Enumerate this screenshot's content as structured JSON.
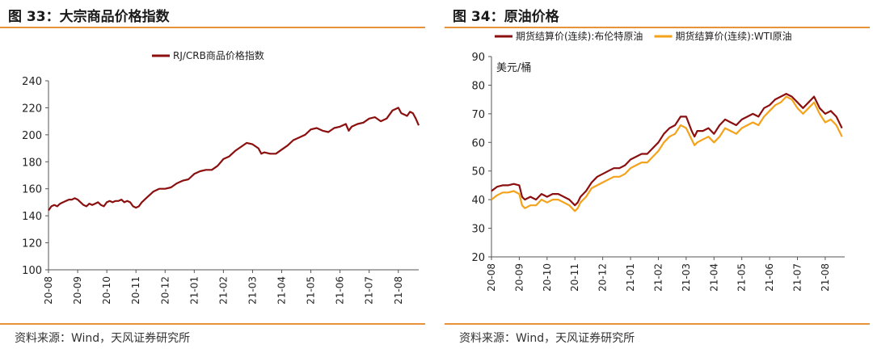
{
  "left": {
    "figure_title": "图 33：大宗商品价格指数",
    "source": "资料来源：Wind，天风证券研究所"
  },
  "right": {
    "figure_title": "图 34：原油价格",
    "source": "资料来源：Wind，天风证券研究所"
  },
  "colors": {
    "dark_red": "#8b0f0f",
    "orange": "#f5a21b",
    "rule": "#e8923a"
  },
  "chart_data": [
    {
      "type": "line",
      "title": "",
      "xlabel": "",
      "ylabel": "",
      "ylim": [
        100,
        240
      ],
      "y_ticks": [
        "100",
        "120",
        "140",
        "160",
        "180",
        "200",
        "220",
        "240"
      ],
      "x_ticks": [
        "20-08",
        "20-09",
        "20-10",
        "20-11",
        "20-12",
        "21-01",
        "21-02",
        "21-03",
        "21-04",
        "21-05",
        "21-06",
        "21-07",
        "21-08"
      ],
      "x_range": [
        0,
        12.7
      ],
      "legend_position": "top",
      "grid": false,
      "series": [
        {
          "name": "RJ/CRB商品价格指数",
          "color": "#8b0f0f",
          "points": [
            [
              0.0,
              144
            ],
            [
              0.1,
              147
            ],
            [
              0.2,
              148
            ],
            [
              0.3,
              147
            ],
            [
              0.4,
              149
            ],
            [
              0.5,
              150
            ],
            [
              0.6,
              151
            ],
            [
              0.7,
              152
            ],
            [
              0.8,
              152
            ],
            [
              0.9,
              153
            ],
            [
              1.0,
              152
            ],
            [
              1.1,
              150
            ],
            [
              1.2,
              148
            ],
            [
              1.3,
              147
            ],
            [
              1.4,
              149
            ],
            [
              1.5,
              148
            ],
            [
              1.6,
              149
            ],
            [
              1.7,
              150
            ],
            [
              1.8,
              148
            ],
            [
              1.9,
              147
            ],
            [
              2.0,
              150
            ],
            [
              2.1,
              151
            ],
            [
              2.2,
              150
            ],
            [
              2.3,
              151
            ],
            [
              2.4,
              151
            ],
            [
              2.5,
              152
            ],
            [
              2.6,
              150
            ],
            [
              2.7,
              151
            ],
            [
              2.8,
              150
            ],
            [
              2.9,
              147
            ],
            [
              3.0,
              146
            ],
            [
              3.1,
              147
            ],
            [
              3.2,
              150
            ],
            [
              3.3,
              152
            ],
            [
              3.4,
              154
            ],
            [
              3.5,
              156
            ],
            [
              3.6,
              158
            ],
            [
              3.8,
              160
            ],
            [
              4.0,
              160
            ],
            [
              4.2,
              161
            ],
            [
              4.4,
              164
            ],
            [
              4.6,
              166
            ],
            [
              4.8,
              167
            ],
            [
              5.0,
              171
            ],
            [
              5.2,
              173
            ],
            [
              5.4,
              174
            ],
            [
              5.6,
              174
            ],
            [
              5.8,
              177
            ],
            [
              6.0,
              182
            ],
            [
              6.2,
              184
            ],
            [
              6.4,
              188
            ],
            [
              6.6,
              191
            ],
            [
              6.8,
              194
            ],
            [
              7.0,
              193
            ],
            [
              7.2,
              190
            ],
            [
              7.3,
              186
            ],
            [
              7.4,
              187
            ],
            [
              7.6,
              186
            ],
            [
              7.8,
              186
            ],
            [
              8.0,
              189
            ],
            [
              8.2,
              192
            ],
            [
              8.4,
              196
            ],
            [
              8.6,
              198
            ],
            [
              8.8,
              200
            ],
            [
              9.0,
              204
            ],
            [
              9.2,
              205
            ],
            [
              9.4,
              203
            ],
            [
              9.6,
              202
            ],
            [
              9.8,
              205
            ],
            [
              10.0,
              206
            ],
            [
              10.2,
              208
            ],
            [
              10.3,
              203
            ],
            [
              10.4,
              206
            ],
            [
              10.6,
              208
            ],
            [
              10.8,
              209
            ],
            [
              11.0,
              212
            ],
            [
              11.2,
              213
            ],
            [
              11.4,
              210
            ],
            [
              11.6,
              212
            ],
            [
              11.8,
              218
            ],
            [
              12.0,
              220
            ],
            [
              12.1,
              216
            ],
            [
              12.2,
              215
            ],
            [
              12.3,
              214
            ],
            [
              12.4,
              217
            ],
            [
              12.5,
              216
            ],
            [
              12.6,
              212
            ],
            [
              12.7,
              207
            ]
          ]
        }
      ]
    },
    {
      "type": "line",
      "title": "",
      "xlabel": "",
      "ylabel": "美元/桶",
      "ylim": [
        20,
        90
      ],
      "y_ticks": [
        "20",
        "30",
        "40",
        "50",
        "60",
        "70",
        "80",
        "90"
      ],
      "x_ticks": [
        "20-08",
        "20-09",
        "20-10",
        "20-11",
        "20-12",
        "21-01",
        "21-02",
        "21-03",
        "21-04",
        "21-05",
        "21-06",
        "21-07",
        "21-08"
      ],
      "x_range": [
        0,
        12.7
      ],
      "legend_position": "top",
      "grid": false,
      "series": [
        {
          "name": "期货结算价(连续):布伦特原油",
          "color": "#8b0f0f",
          "points": [
            [
              0.0,
              43
            ],
            [
              0.2,
              44.5
            ],
            [
              0.4,
              45
            ],
            [
              0.6,
              45
            ],
            [
              0.8,
              45.5
            ],
            [
              1.0,
              45
            ],
            [
              1.1,
              41
            ],
            [
              1.2,
              40
            ],
            [
              1.4,
              41
            ],
            [
              1.6,
              40
            ],
            [
              1.8,
              42
            ],
            [
              2.0,
              41
            ],
            [
              2.2,
              42
            ],
            [
              2.4,
              42
            ],
            [
              2.6,
              41
            ],
            [
              2.8,
              40
            ],
            [
              3.0,
              38
            ],
            [
              3.1,
              39
            ],
            [
              3.2,
              41
            ],
            [
              3.4,
              43
            ],
            [
              3.6,
              46
            ],
            [
              3.8,
              48
            ],
            [
              4.0,
              49
            ],
            [
              4.2,
              50
            ],
            [
              4.4,
              51
            ],
            [
              4.6,
              51
            ],
            [
              4.8,
              52
            ],
            [
              5.0,
              54
            ],
            [
              5.2,
              55
            ],
            [
              5.4,
              56
            ],
            [
              5.6,
              56
            ],
            [
              5.8,
              58
            ],
            [
              6.0,
              60
            ],
            [
              6.2,
              63
            ],
            [
              6.4,
              65
            ],
            [
              6.6,
              66
            ],
            [
              6.8,
              69
            ],
            [
              7.0,
              69
            ],
            [
              7.2,
              64
            ],
            [
              7.3,
              62
            ],
            [
              7.4,
              64
            ],
            [
              7.6,
              64
            ],
            [
              7.8,
              65
            ],
            [
              8.0,
              63
            ],
            [
              8.2,
              66
            ],
            [
              8.4,
              68
            ],
            [
              8.6,
              67
            ],
            [
              8.8,
              66
            ],
            [
              9.0,
              68
            ],
            [
              9.2,
              69
            ],
            [
              9.4,
              70
            ],
            [
              9.6,
              69
            ],
            [
              9.8,
              72
            ],
            [
              10.0,
              73
            ],
            [
              10.2,
              75
            ],
            [
              10.4,
              76
            ],
            [
              10.6,
              77
            ],
            [
              10.8,
              76
            ],
            [
              11.0,
              74
            ],
            [
              11.2,
              72
            ],
            [
              11.4,
              74
            ],
            [
              11.6,
              76
            ],
            [
              11.8,
              72
            ],
            [
              12.0,
              70
            ],
            [
              12.2,
              71
            ],
            [
              12.4,
              69
            ],
            [
              12.6,
              65
            ]
          ]
        },
        {
          "name": "期货结算价(连续):WTI原油",
          "color": "#f5a21b",
          "points": [
            [
              0.0,
              40
            ],
            [
              0.2,
              41.5
            ],
            [
              0.4,
              42.5
            ],
            [
              0.6,
              42.5
            ],
            [
              0.8,
              43
            ],
            [
              1.0,
              42
            ],
            [
              1.1,
              38
            ],
            [
              1.2,
              37
            ],
            [
              1.4,
              38
            ],
            [
              1.6,
              38
            ],
            [
              1.8,
              40
            ],
            [
              2.0,
              39
            ],
            [
              2.2,
              40
            ],
            [
              2.4,
              40
            ],
            [
              2.6,
              39
            ],
            [
              2.8,
              38
            ],
            [
              3.0,
              36
            ],
            [
              3.1,
              37
            ],
            [
              3.2,
              39
            ],
            [
              3.4,
              41
            ],
            [
              3.6,
              44
            ],
            [
              3.8,
              45
            ],
            [
              4.0,
              46
            ],
            [
              4.2,
              47
            ],
            [
              4.4,
              48
            ],
            [
              4.6,
              48
            ],
            [
              4.8,
              49
            ],
            [
              5.0,
              51
            ],
            [
              5.2,
              52
            ],
            [
              5.4,
              53
            ],
            [
              5.6,
              53
            ],
            [
              5.8,
              55
            ],
            [
              6.0,
              57
            ],
            [
              6.2,
              60
            ],
            [
              6.4,
              62
            ],
            [
              6.6,
              63
            ],
            [
              6.8,
              66
            ],
            [
              7.0,
              65
            ],
            [
              7.2,
              61
            ],
            [
              7.3,
              59
            ],
            [
              7.4,
              60
            ],
            [
              7.6,
              61
            ],
            [
              7.8,
              62
            ],
            [
              8.0,
              60
            ],
            [
              8.2,
              62
            ],
            [
              8.4,
              65
            ],
            [
              8.6,
              64
            ],
            [
              8.8,
              63
            ],
            [
              9.0,
              65
            ],
            [
              9.2,
              66
            ],
            [
              9.4,
              67
            ],
            [
              9.6,
              66
            ],
            [
              9.8,
              69
            ],
            [
              10.0,
              71
            ],
            [
              10.2,
              73
            ],
            [
              10.4,
              74
            ],
            [
              10.6,
              76
            ],
            [
              10.8,
              75
            ],
            [
              11.0,
              72
            ],
            [
              11.2,
              70
            ],
            [
              11.4,
              72
            ],
            [
              11.6,
              74
            ],
            [
              11.8,
              70
            ],
            [
              12.0,
              67
            ],
            [
              12.2,
              68
            ],
            [
              12.4,
              66
            ],
            [
              12.6,
              62
            ]
          ]
        }
      ]
    }
  ]
}
